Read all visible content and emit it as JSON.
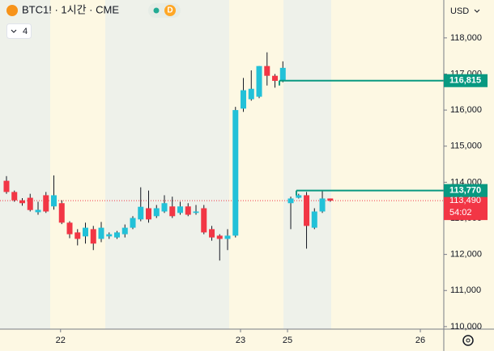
{
  "header": {
    "symbol": "BTC1! · 1시간 · CME",
    "badge": "D",
    "indicator_count": "4",
    "currency": "USD"
  },
  "chart_data": {
    "type": "candlestick",
    "x": [
      0,
      1,
      2,
      3,
      4,
      5,
      6,
      7,
      8,
      9,
      10,
      11,
      12,
      13,
      14,
      15,
      16,
      17,
      18,
      19,
      20,
      21,
      22,
      23,
      24,
      25,
      26,
      27,
      28,
      29,
      30,
      31,
      32,
      33,
      34,
      35,
      36,
      37,
      38,
      39,
      40,
      41
    ],
    "open": [
      114040,
      113730,
      113500,
      113570,
      113170,
      113640,
      113330,
      113420,
      112880,
      112610,
      112500,
      112700,
      112430,
      112500,
      112470,
      112560,
      112740,
      112970,
      113280,
      113060,
      113190,
      113330,
      113150,
      113330,
      113150,
      113280,
      112700,
      112520,
      112430,
      112520,
      116040,
      116300,
      116370,
      117220,
      116950,
      116810,
      113420,
      113570,
      113640,
      112740,
      113190,
      113550
    ],
    "high": [
      114170,
      113770,
      113560,
      113680,
      113460,
      113730,
      114190,
      113500,
      112920,
      112700,
      112880,
      112790,
      112900,
      112610,
      112650,
      112830,
      113060,
      113860,
      113770,
      113370,
      113640,
      113600,
      113460,
      113420,
      113370,
      113370,
      112790,
      112560,
      112700,
      116090,
      116890,
      117100,
      117220,
      117600,
      117000,
      117350,
      113600,
      113680,
      113730,
      113280,
      113770,
      113550
    ],
    "low": [
      113680,
      113460,
      113350,
      113190,
      113100,
      113150,
      113240,
      112840,
      112450,
      112250,
      112300,
      112120,
      112340,
      112430,
      112430,
      112470,
      112700,
      112920,
      112880,
      113010,
      113150,
      113010,
      113100,
      113060,
      113100,
      112560,
      112380,
      111830,
      112120,
      112470,
      115950,
      116260,
      116330,
      116680,
      116620,
      116770,
      112700,
      113550,
      112160,
      112700,
      113150,
      113460
    ],
    "close": [
      113730,
      113500,
      113420,
      113230,
      113235,
      113190,
      113640,
      112880,
      112560,
      112430,
      112740,
      112300,
      112740,
      112560,
      112610,
      112740,
      113010,
      113320,
      112970,
      113280,
      113420,
      113060,
      113330,
      113100,
      113190,
      112610,
      112470,
      112430,
      112520,
      116000,
      116550,
      116590,
      117220,
      116950,
      116810,
      117170,
      113550,
      113640,
      112790,
      113190,
      113550,
      113490
    ],
    "up_color": "#22c1d8",
    "down_color": "#f23645",
    "xlim": [
      -0.82,
      55.38
    ],
    "xticks": [
      {
        "value": 6.85,
        "label": "22"
      },
      {
        "value": 29.64,
        "label": "23"
      },
      {
        "value": 35.59,
        "label": "25"
      },
      {
        "value": 52.41,
        "label": "26"
      }
    ],
    "ylim": [
      109930,
      119050
    ],
    "yticks": [
      {
        "value": 118000,
        "label": "118,000"
      },
      {
        "value": 117000,
        "label": "117,000"
      },
      {
        "value": 116000,
        "label": "116,000"
      },
      {
        "value": 115000,
        "label": "115,000"
      },
      {
        "value": 114000,
        "label": "114,000"
      },
      {
        "value": 113000,
        "label": "113,000"
      },
      {
        "value": 112000,
        "label": "112,000"
      },
      {
        "value": 111000,
        "label": "111,000"
      },
      {
        "value": 110000,
        "label": "110,000"
      }
    ],
    "price_lines": [
      {
        "value": 116815,
        "label": "116,815",
        "color": "#089981"
      },
      {
        "value": 113770,
        "label": "113,770",
        "color": "#089981"
      }
    ],
    "last_price": {
      "value": 113490,
      "label": "113,490",
      "countdown": "54:02",
      "color": "#f23645"
    }
  }
}
